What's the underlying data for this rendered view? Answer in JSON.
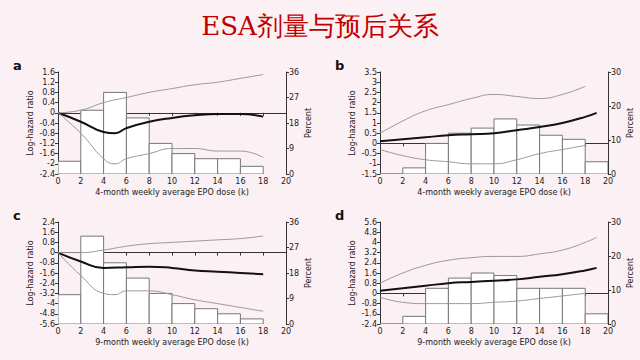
{
  "title": "ESA剂量与预后关系",
  "chart_data": [
    {
      "type": "line",
      "title": "a",
      "x_label": "4-month weekly average EPO dose (k)",
      "y_label": "Log-hazard ratio",
      "y2_label": "Percent",
      "xlim": [
        0,
        20
      ],
      "xticks": [
        0,
        2,
        4,
        6,
        8,
        10,
        12,
        14,
        16,
        18,
        20
      ],
      "ylim": [
        -2.4,
        1.6
      ],
      "yticks": [
        -2.4,
        -2,
        -1.6,
        -1.2,
        -0.8,
        -0.4,
        0,
        0.4,
        0.8,
        1.2,
        1.6
      ],
      "y2lim": [
        0,
        36
      ],
      "y2ticks": [
        0,
        9,
        18,
        27,
        36
      ],
      "grid": false,
      "series": [
        {
          "type": "bar",
          "axis": "y2",
          "color": "#777777",
          "bins": [
            0,
            2,
            4,
            6,
            8,
            10,
            12,
            14,
            16,
            18
          ],
          "values": [
            4.5,
            22.5,
            28.8,
            19.8,
            10.8,
            7.2,
            5.4,
            5.4,
            2.7
          ]
        },
        {
          "type": "line",
          "color": "#111111",
          "line_style": "solid",
          "x": [
            0,
            2,
            4,
            5,
            6,
            8,
            10,
            12,
            14,
            16,
            18
          ],
          "values": [
            0,
            -0.35,
            -0.75,
            -0.8,
            -0.6,
            -0.35,
            -0.2,
            -0.1,
            -0.05,
            -0.05,
            -0.15
          ]
        },
        {
          "type": "line",
          "color": "#999999",
          "line_style": "solid",
          "x": [
            0,
            2,
            4,
            6,
            8,
            10,
            12,
            14,
            16,
            18
          ],
          "values": [
            0,
            0.1,
            0.4,
            0.6,
            0.8,
            0.95,
            1.1,
            1.2,
            1.35,
            1.5
          ]
        },
        {
          "type": "line",
          "color": "#999999",
          "line_style": "solid",
          "x": [
            0,
            2,
            4,
            5,
            6,
            8,
            10,
            12,
            14,
            16,
            18
          ],
          "values": [
            0,
            -0.8,
            -1.8,
            -2.0,
            -1.8,
            -1.6,
            -1.4,
            -1.4,
            -1.5,
            -1.5,
            -1.75
          ]
        }
      ]
    },
    {
      "type": "line",
      "title": "b",
      "x_label": "4-month weekly average EPO dose (k)",
      "y_label": "Log-hazard ratio",
      "y2_label": "Percent",
      "xlim": [
        0,
        20
      ],
      "xticks": [
        0,
        2,
        4,
        6,
        8,
        10,
        12,
        14,
        16,
        18,
        20
      ],
      "ylim": [
        -1.5,
        3.5
      ],
      "yticks": [
        -1.5,
        -1,
        -0.5,
        0,
        0.5,
        1,
        1.5,
        2,
        2.5,
        3,
        3.5
      ],
      "y2lim": [
        0,
        30
      ],
      "y2ticks": [
        0,
        10,
        20,
        30
      ],
      "grid": false,
      "series": [
        {
          "type": "bar",
          "axis": "y2",
          "color": "#777777",
          "bins": [
            0,
            2,
            4,
            6,
            8,
            10,
            12,
            14,
            16,
            18,
            20
          ],
          "values": [
            0,
            1.8,
            9,
            12,
            13.5,
            16.2,
            14.4,
            11.4,
            10.2,
            3.6
          ]
        },
        {
          "type": "line",
          "color": "#111111",
          "line_style": "solid",
          "x": [
            0,
            2,
            4,
            6,
            8,
            10,
            12,
            14,
            16,
            18,
            19
          ],
          "values": [
            0.1,
            0.2,
            0.3,
            0.4,
            0.45,
            0.5,
            0.65,
            0.8,
            1.0,
            1.3,
            1.5
          ]
        },
        {
          "type": "line",
          "color": "#999999",
          "line_style": "solid",
          "x": [
            0,
            2,
            4,
            6,
            8,
            10,
            12,
            14,
            16,
            18
          ],
          "values": [
            0.5,
            1.1,
            1.6,
            1.9,
            2.2,
            2.4,
            2.3,
            2.2,
            2.4,
            2.8
          ]
        },
        {
          "type": "line",
          "color": "#999999",
          "line_style": "solid",
          "x": [
            0,
            2,
            4,
            6,
            8,
            10,
            12,
            14,
            16,
            18
          ],
          "values": [
            -0.3,
            -0.6,
            -0.8,
            -0.9,
            -1.0,
            -1.0,
            -0.8,
            -0.5,
            -0.3,
            -0.1
          ]
        }
      ]
    },
    {
      "type": "line",
      "title": "c",
      "x_label": "9-month weekly average EPO dose (k)",
      "y_label": "Log-hazard ratio",
      "y2_label": "Percent",
      "xlim": [
        0,
        20
      ],
      "xticks": [
        0,
        2,
        4,
        6,
        8,
        10,
        12,
        14,
        16,
        18,
        20
      ],
      "ylim": [
        -5.6,
        2.4
      ],
      "yticks": [
        -5.6,
        -4.8,
        -4,
        -3.2,
        -2.4,
        -1.6,
        -0.8,
        0,
        0.8,
        1.6,
        2.4
      ],
      "y2lim": [
        0,
        36
      ],
      "y2ticks": [
        0,
        9,
        18,
        27,
        36
      ],
      "grid": false,
      "series": [
        {
          "type": "bar",
          "axis": "y2",
          "color": "#777777",
          "bins": [
            0,
            2,
            4,
            6,
            8,
            10,
            12,
            14,
            16,
            18
          ],
          "values": [
            10.35,
            31,
            21.6,
            16.2,
            10.8,
            7.2,
            5.4,
            3.6,
            1.8
          ]
        },
        {
          "type": "line",
          "color": "#111111",
          "line_style": "solid",
          "x": [
            0,
            2,
            4,
            6,
            8,
            10,
            12,
            14,
            16,
            18
          ],
          "values": [
            0,
            -0.7,
            -1.2,
            -1.15,
            -1.1,
            -1.2,
            -1.4,
            -1.5,
            -1.6,
            -1.7
          ]
        },
        {
          "type": "line",
          "color": "#999999",
          "line_style": "solid",
          "x": [
            0,
            2,
            4,
            6,
            8,
            10,
            12,
            14,
            16,
            18
          ],
          "values": [
            0,
            0.0,
            0.2,
            0.5,
            0.7,
            0.8,
            0.9,
            1.0,
            1.1,
            1.3
          ]
        },
        {
          "type": "line",
          "color": "#999999",
          "line_style": "solid",
          "x": [
            0,
            2,
            4,
            5,
            6,
            8,
            10,
            12,
            14,
            16,
            18
          ],
          "values": [
            0,
            -1.8,
            -3.2,
            -3.3,
            -3.0,
            -3.0,
            -3.3,
            -3.7,
            -4.0,
            -4.3,
            -4.6
          ]
        }
      ]
    },
    {
      "type": "line",
      "title": "d",
      "x_label": "9-month weekly average EPO dose (k)",
      "y_label": "Log-hazard ratio",
      "y2_label": "Percent",
      "xlim": [
        0,
        20
      ],
      "xticks": [
        0,
        2,
        4,
        6,
        8,
        10,
        12,
        14,
        16,
        18,
        20
      ],
      "ylim": [
        -2.4,
        5.6
      ],
      "yticks": [
        -2.4,
        -1.6,
        -0.8,
        0,
        0.8,
        1.6,
        2.4,
        3.2,
        4,
        4.8,
        5.6
      ],
      "y2lim": [
        0,
        30
      ],
      "y2ticks": [
        0,
        10,
        20,
        30
      ],
      "grid": false,
      "series": [
        {
          "type": "bar",
          "axis": "y2",
          "color": "#777777",
          "bins": [
            0,
            2,
            4,
            6,
            8,
            10,
            12,
            14,
            16,
            18,
            20
          ],
          "values": [
            0,
            2.25,
            10.5,
            13.5,
            15,
            14.25,
            10.5,
            10.5,
            10.5,
            3
          ]
        },
        {
          "type": "line",
          "color": "#111111",
          "line_style": "solid",
          "x": [
            0,
            2,
            4,
            6,
            8,
            10,
            12,
            14,
            16,
            18,
            19
          ],
          "values": [
            0.2,
            0.4,
            0.6,
            0.8,
            0.9,
            1.0,
            1.1,
            1.3,
            1.5,
            1.8,
            2.0
          ]
        },
        {
          "type": "line",
          "color": "#999999",
          "line_style": "solid",
          "x": [
            0,
            2,
            4,
            6,
            8,
            10,
            12,
            14,
            16,
            18,
            19
          ],
          "values": [
            0.8,
            1.6,
            2.2,
            2.6,
            2.8,
            2.9,
            2.9,
            3.1,
            3.4,
            4.0,
            4.4
          ]
        },
        {
          "type": "line",
          "color": "#999999",
          "line_style": "solid",
          "x": [
            0,
            2,
            4,
            6,
            8,
            10,
            12,
            14,
            16,
            18
          ],
          "values": [
            -0.3,
            -0.7,
            -0.8,
            -0.8,
            -0.8,
            -0.7,
            -0.6,
            -0.4,
            -0.2,
            0.0
          ]
        }
      ]
    }
  ]
}
